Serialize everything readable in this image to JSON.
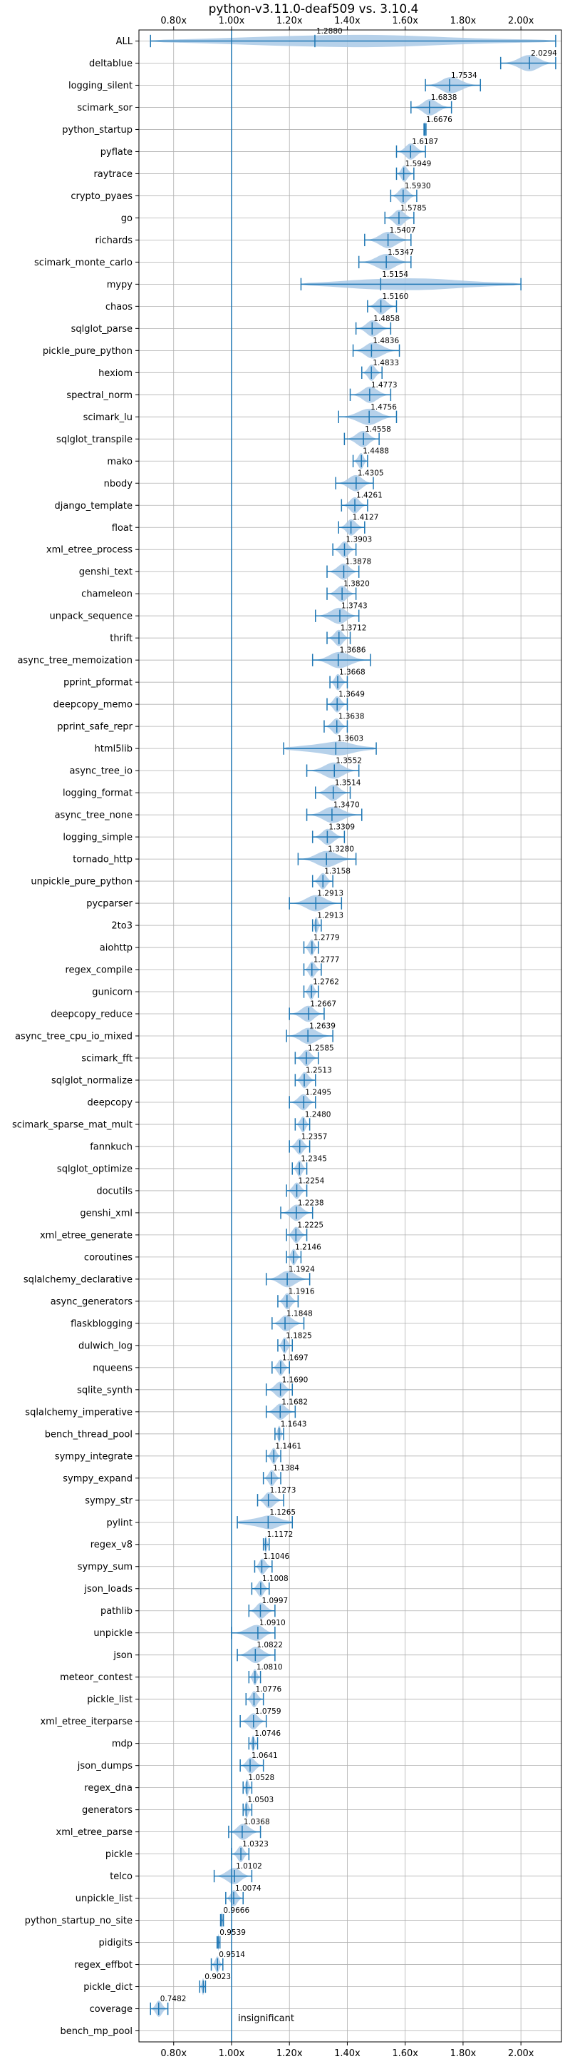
{
  "chart_data": {
    "type": "violin",
    "title": "python-v3.11.0-deaf509 vs. 3.10.4",
    "xlabel": "",
    "ylabel": "",
    "xlim": [
      0.68,
      2.14
    ],
    "x_ticks": [
      0.8,
      1.0,
      1.2,
      1.4,
      1.6,
      1.8,
      2.0
    ],
    "x_tick_labels": [
      "0.80x",
      "1.00x",
      "1.20x",
      "1.40x",
      "1.60x",
      "1.80x",
      "2.00x"
    ],
    "x_tick_positions": [
      "top",
      "bottom"
    ],
    "reference_line": 1.0,
    "grid": true,
    "legend": "none",
    "colors": {
      "violin": "#a9c9e6",
      "whisker": "#1f77b4",
      "reference": "#1f77b4",
      "grid": "#b0b0b0"
    },
    "insignificant_label": "insignificant",
    "benchmarks": [
      {
        "name": "ALL",
        "value": 1.288,
        "label": "1.2880",
        "min": 0.72,
        "max": 2.12,
        "shape": "wide"
      },
      {
        "name": "deltablue",
        "value": 2.0294,
        "label": "2.0294",
        "min": 1.93,
        "max": 2.12,
        "shape": "normal"
      },
      {
        "name": "logging_silent",
        "value": 1.7534,
        "label": "1.7534",
        "min": 1.67,
        "max": 1.86,
        "shape": "normal"
      },
      {
        "name": "scimark_sor",
        "value": 1.6838,
        "label": "1.6838",
        "min": 1.62,
        "max": 1.76,
        "shape": "normal"
      },
      {
        "name": "python_startup",
        "value": 1.6676,
        "label": "1.6676",
        "min": 1.665,
        "max": 1.672,
        "shape": "narrow"
      },
      {
        "name": "pyflate",
        "value": 1.6187,
        "label": "1.6187",
        "min": 1.57,
        "max": 1.67,
        "shape": "normal"
      },
      {
        "name": "raytrace",
        "value": 1.5949,
        "label": "1.5949",
        "min": 1.57,
        "max": 1.63,
        "shape": "normal"
      },
      {
        "name": "crypto_pyaes",
        "value": 1.593,
        "label": "1.5930",
        "min": 1.55,
        "max": 1.64,
        "shape": "normal"
      },
      {
        "name": "go",
        "value": 1.5785,
        "label": "1.5785",
        "min": 1.53,
        "max": 1.63,
        "shape": "normal"
      },
      {
        "name": "richards",
        "value": 1.5407,
        "label": "1.5407",
        "min": 1.46,
        "max": 1.62,
        "shape": "normal"
      },
      {
        "name": "scimark_monte_carlo",
        "value": 1.5347,
        "label": "1.5347",
        "min": 1.44,
        "max": 1.62,
        "shape": "normal"
      },
      {
        "name": "mypy",
        "value": 1.5154,
        "label": "1.5154",
        "min": 1.24,
        "max": 2.0,
        "shape": "wide"
      },
      {
        "name": "chaos",
        "value": 1.516,
        "label": "1.5160",
        "min": 1.47,
        "max": 1.57,
        "shape": "normal"
      },
      {
        "name": "sqlglot_parse",
        "value": 1.4858,
        "label": "1.4858",
        "min": 1.43,
        "max": 1.55,
        "shape": "normal"
      },
      {
        "name": "pickle_pure_python",
        "value": 1.4836,
        "label": "1.4836",
        "min": 1.42,
        "max": 1.58,
        "shape": "normal"
      },
      {
        "name": "hexiom",
        "value": 1.4833,
        "label": "1.4833",
        "min": 1.45,
        "max": 1.52,
        "shape": "normal"
      },
      {
        "name": "spectral_norm",
        "value": 1.4773,
        "label": "1.4773",
        "min": 1.41,
        "max": 1.55,
        "shape": "normal"
      },
      {
        "name": "scimark_lu",
        "value": 1.4756,
        "label": "1.4756",
        "min": 1.37,
        "max": 1.57,
        "shape": "normal"
      },
      {
        "name": "sqlglot_transpile",
        "value": 1.4558,
        "label": "1.4558",
        "min": 1.39,
        "max": 1.51,
        "shape": "normal"
      },
      {
        "name": "mako",
        "value": 1.4488,
        "label": "1.4488",
        "min": 1.42,
        "max": 1.47,
        "shape": "normal"
      },
      {
        "name": "nbody",
        "value": 1.4305,
        "label": "1.4305",
        "min": 1.36,
        "max": 1.49,
        "shape": "normal"
      },
      {
        "name": "django_template",
        "value": 1.4261,
        "label": "1.4261",
        "min": 1.38,
        "max": 1.47,
        "shape": "normal"
      },
      {
        "name": "float",
        "value": 1.4127,
        "label": "1.4127",
        "min": 1.37,
        "max": 1.46,
        "shape": "normal"
      },
      {
        "name": "xml_etree_process",
        "value": 1.3903,
        "label": "1.3903",
        "min": 1.35,
        "max": 1.43,
        "shape": "normal"
      },
      {
        "name": "genshi_text",
        "value": 1.3878,
        "label": "1.3878",
        "min": 1.33,
        "max": 1.44,
        "shape": "normal"
      },
      {
        "name": "chameleon",
        "value": 1.382,
        "label": "1.3820",
        "min": 1.33,
        "max": 1.43,
        "shape": "normal"
      },
      {
        "name": "unpack_sequence",
        "value": 1.3743,
        "label": "1.3743",
        "min": 1.29,
        "max": 1.44,
        "shape": "normal"
      },
      {
        "name": "thrift",
        "value": 1.3712,
        "label": "1.3712",
        "min": 1.33,
        "max": 1.41,
        "shape": "normal"
      },
      {
        "name": "async_tree_memoization",
        "value": 1.3686,
        "label": "1.3686",
        "min": 1.28,
        "max": 1.48,
        "shape": "normal"
      },
      {
        "name": "pprint_pformat",
        "value": 1.3668,
        "label": "1.3668",
        "min": 1.34,
        "max": 1.4,
        "shape": "normal"
      },
      {
        "name": "deepcopy_memo",
        "value": 1.3649,
        "label": "1.3649",
        "min": 1.33,
        "max": 1.4,
        "shape": "normal"
      },
      {
        "name": "pprint_safe_repr",
        "value": 1.3638,
        "label": "1.3638",
        "min": 1.32,
        "max": 1.4,
        "shape": "normal"
      },
      {
        "name": "html5lib",
        "value": 1.3603,
        "label": "1.3603",
        "min": 1.18,
        "max": 1.5,
        "shape": "wide"
      },
      {
        "name": "async_tree_io",
        "value": 1.3552,
        "label": "1.3552",
        "min": 1.26,
        "max": 1.44,
        "shape": "normal"
      },
      {
        "name": "logging_format",
        "value": 1.3514,
        "label": "1.3514",
        "min": 1.29,
        "max": 1.41,
        "shape": "normal"
      },
      {
        "name": "async_tree_none",
        "value": 1.347,
        "label": "1.3470",
        "min": 1.26,
        "max": 1.45,
        "shape": "normal"
      },
      {
        "name": "logging_simple",
        "value": 1.3309,
        "label": "1.3309",
        "min": 1.28,
        "max": 1.39,
        "shape": "normal"
      },
      {
        "name": "tornado_http",
        "value": 1.328,
        "label": "1.3280",
        "min": 1.23,
        "max": 1.43,
        "shape": "normal"
      },
      {
        "name": "unpickle_pure_python",
        "value": 1.3158,
        "label": "1.3158",
        "min": 1.28,
        "max": 1.35,
        "shape": "normal"
      },
      {
        "name": "pycparser",
        "value": 1.2913,
        "label": "1.2913",
        "min": 1.2,
        "max": 1.38,
        "shape": "normal"
      },
      {
        "name": "2to3",
        "value": 1.2913,
        "label": "1.2913",
        "min": 1.28,
        "max": 1.31,
        "shape": "narrow"
      },
      {
        "name": "aiohttp",
        "value": 1.2779,
        "label": "1.2779",
        "min": 1.25,
        "max": 1.3,
        "shape": "normal"
      },
      {
        "name": "regex_compile",
        "value": 1.2777,
        "label": "1.2777",
        "min": 1.25,
        "max": 1.31,
        "shape": "normal"
      },
      {
        "name": "gunicorn",
        "value": 1.2762,
        "label": "1.2762",
        "min": 1.25,
        "max": 1.3,
        "shape": "normal"
      },
      {
        "name": "deepcopy_reduce",
        "value": 1.2667,
        "label": "1.2667",
        "min": 1.2,
        "max": 1.32,
        "shape": "normal"
      },
      {
        "name": "async_tree_cpu_io_mixed",
        "value": 1.2639,
        "label": "1.2639",
        "min": 1.19,
        "max": 1.35,
        "shape": "normal"
      },
      {
        "name": "scimark_fft",
        "value": 1.2585,
        "label": "1.2585",
        "min": 1.22,
        "max": 1.3,
        "shape": "normal"
      },
      {
        "name": "sqlglot_normalize",
        "value": 1.2513,
        "label": "1.2513",
        "min": 1.22,
        "max": 1.29,
        "shape": "normal"
      },
      {
        "name": "deepcopy",
        "value": 1.2495,
        "label": "1.2495",
        "min": 1.2,
        "max": 1.29,
        "shape": "normal"
      },
      {
        "name": "scimark_sparse_mat_mult",
        "value": 1.248,
        "label": "1.2480",
        "min": 1.22,
        "max": 1.27,
        "shape": "normal"
      },
      {
        "name": "fannkuch",
        "value": 1.2357,
        "label": "1.2357",
        "min": 1.2,
        "max": 1.27,
        "shape": "normal"
      },
      {
        "name": "sqlglot_optimize",
        "value": 1.2345,
        "label": "1.2345",
        "min": 1.21,
        "max": 1.26,
        "shape": "normal"
      },
      {
        "name": "docutils",
        "value": 1.2254,
        "label": "1.2254",
        "min": 1.19,
        "max": 1.26,
        "shape": "normal"
      },
      {
        "name": "genshi_xml",
        "value": 1.2238,
        "label": "1.2238",
        "min": 1.17,
        "max": 1.28,
        "shape": "normal"
      },
      {
        "name": "xml_etree_generate",
        "value": 1.2225,
        "label": "1.2225",
        "min": 1.19,
        "max": 1.26,
        "shape": "normal"
      },
      {
        "name": "coroutines",
        "value": 1.2146,
        "label": "1.2146",
        "min": 1.19,
        "max": 1.24,
        "shape": "normal"
      },
      {
        "name": "sqlalchemy_declarative",
        "value": 1.1924,
        "label": "1.1924",
        "min": 1.12,
        "max": 1.27,
        "shape": "normal"
      },
      {
        "name": "async_generators",
        "value": 1.1916,
        "label": "1.1916",
        "min": 1.16,
        "max": 1.23,
        "shape": "normal"
      },
      {
        "name": "flaskblogging",
        "value": 1.1848,
        "label": "1.1848",
        "min": 1.14,
        "max": 1.25,
        "shape": "normal"
      },
      {
        "name": "dulwich_log",
        "value": 1.1825,
        "label": "1.1825",
        "min": 1.16,
        "max": 1.21,
        "shape": "normal"
      },
      {
        "name": "nqueens",
        "value": 1.1697,
        "label": "1.1697",
        "min": 1.14,
        "max": 1.2,
        "shape": "normal"
      },
      {
        "name": "sqlite_synth",
        "value": 1.169,
        "label": "1.1690",
        "min": 1.12,
        "max": 1.21,
        "shape": "normal"
      },
      {
        "name": "sqlalchemy_imperative",
        "value": 1.1682,
        "label": "1.1682",
        "min": 1.12,
        "max": 1.22,
        "shape": "normal"
      },
      {
        "name": "bench_thread_pool",
        "value": 1.1643,
        "label": "1.1643",
        "min": 1.15,
        "max": 1.18,
        "shape": "normal"
      },
      {
        "name": "sympy_integrate",
        "value": 1.1461,
        "label": "1.1461",
        "min": 1.12,
        "max": 1.17,
        "shape": "normal"
      },
      {
        "name": "sympy_expand",
        "value": 1.1384,
        "label": "1.1384",
        "min": 1.11,
        "max": 1.17,
        "shape": "normal"
      },
      {
        "name": "sympy_str",
        "value": 1.1273,
        "label": "1.1273",
        "min": 1.09,
        "max": 1.18,
        "shape": "normal"
      },
      {
        "name": "pylint",
        "value": 1.1265,
        "label": "1.1265",
        "min": 1.02,
        "max": 1.21,
        "shape": "wide"
      },
      {
        "name": "regex_v8",
        "value": 1.1172,
        "label": "1.1172",
        "min": 1.11,
        "max": 1.13,
        "shape": "narrow"
      },
      {
        "name": "sympy_sum",
        "value": 1.1046,
        "label": "1.1046",
        "min": 1.08,
        "max": 1.14,
        "shape": "normal"
      },
      {
        "name": "json_loads",
        "value": 1.1008,
        "label": "1.1008",
        "min": 1.07,
        "max": 1.13,
        "shape": "normal"
      },
      {
        "name": "pathlib",
        "value": 1.0997,
        "label": "1.0997",
        "min": 1.06,
        "max": 1.15,
        "shape": "normal"
      },
      {
        "name": "unpickle",
        "value": 1.091,
        "label": "1.0910",
        "min": 1.0,
        "max": 1.15,
        "shape": "normal"
      },
      {
        "name": "json",
        "value": 1.0822,
        "label": "1.0822",
        "min": 1.02,
        "max": 1.15,
        "shape": "normal"
      },
      {
        "name": "meteor_contest",
        "value": 1.081,
        "label": "1.0810",
        "min": 1.06,
        "max": 1.1,
        "shape": "normal"
      },
      {
        "name": "pickle_list",
        "value": 1.0776,
        "label": "1.0776",
        "min": 1.05,
        "max": 1.11,
        "shape": "normal"
      },
      {
        "name": "xml_etree_iterparse",
        "value": 1.0759,
        "label": "1.0759",
        "min": 1.03,
        "max": 1.12,
        "shape": "normal"
      },
      {
        "name": "mdp",
        "value": 1.0746,
        "label": "1.0746",
        "min": 1.06,
        "max": 1.09,
        "shape": "normal"
      },
      {
        "name": "json_dumps",
        "value": 1.0641,
        "label": "1.0641",
        "min": 1.03,
        "max": 1.11,
        "shape": "normal"
      },
      {
        "name": "regex_dna",
        "value": 1.0528,
        "label": "1.0528",
        "min": 1.04,
        "max": 1.07,
        "shape": "narrow"
      },
      {
        "name": "generators",
        "value": 1.0503,
        "label": "1.0503",
        "min": 1.04,
        "max": 1.07,
        "shape": "narrow"
      },
      {
        "name": "xml_etree_parse",
        "value": 1.0368,
        "label": "1.0368",
        "min": 0.99,
        "max": 1.1,
        "shape": "normal"
      },
      {
        "name": "pickle",
        "value": 1.0323,
        "label": "1.0323",
        "min": 1.0,
        "max": 1.06,
        "shape": "normal"
      },
      {
        "name": "telco",
        "value": 1.0102,
        "label": "1.0102",
        "min": 0.94,
        "max": 1.07,
        "shape": "normal"
      },
      {
        "name": "unpickle_list",
        "value": 1.0074,
        "label": "1.0074",
        "min": 0.98,
        "max": 1.04,
        "shape": "normal"
      },
      {
        "name": "python_startup_no_site",
        "value": 0.9666,
        "label": "0.9666",
        "min": 0.962,
        "max": 0.972,
        "shape": "narrow"
      },
      {
        "name": "pidigits",
        "value": 0.9539,
        "label": "0.9539",
        "min": 0.95,
        "max": 0.96,
        "shape": "narrow"
      },
      {
        "name": "regex_effbot",
        "value": 0.9514,
        "label": "0.9514",
        "min": 0.93,
        "max": 0.97,
        "shape": "normal"
      },
      {
        "name": "pickle_dict",
        "value": 0.9023,
        "label": "0.9023",
        "min": 0.89,
        "max": 0.91,
        "shape": "narrow"
      },
      {
        "name": "coverage",
        "value": 0.7482,
        "label": "0.7482",
        "min": 0.72,
        "max": 0.78,
        "shape": "normal"
      },
      {
        "name": "bench_mp_pool",
        "value": null,
        "label": "",
        "min": null,
        "max": null,
        "shape": "none"
      }
    ]
  }
}
